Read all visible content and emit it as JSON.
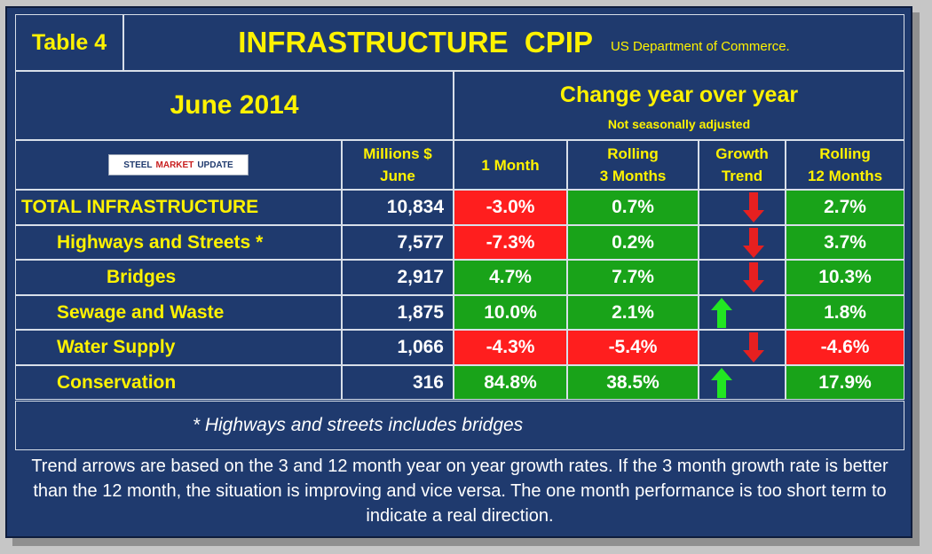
{
  "header": {
    "table_label": "Table 4",
    "title": "INFRASTRUCTURE  CPIP",
    "source": "US Department of Commerce."
  },
  "period": "June 2014",
  "change_title": "Change year over year",
  "change_subtitle": "Not seasonally adjusted",
  "logo": {
    "word1": "STEEL",
    "word2": "MARKET",
    "word3": "UPDATE"
  },
  "columns": {
    "millions_line1": "Millions $",
    "millions_line2": "June",
    "one_month": "1 Month",
    "rolling3_line1": "Rolling",
    "rolling3_line2": "3 Months",
    "trend_line1": "Growth",
    "trend_line2": "Trend",
    "rolling12_line1": "Rolling",
    "rolling12_line2": "12 Months"
  },
  "rows": [
    {
      "label": "TOTAL INFRASTRUCTURE",
      "millions": "10,834",
      "one_month": "-3.0%",
      "one_month_color": "red",
      "rolling3": "0.7%",
      "rolling3_color": "green",
      "trend": "down",
      "rolling12": "2.7%",
      "rolling12_color": "green"
    },
    {
      "label": "Highways and Streets *",
      "millions": "7,577",
      "one_month": "-7.3%",
      "one_month_color": "red",
      "rolling3": "0.2%",
      "rolling3_color": "green",
      "trend": "down",
      "rolling12": "3.7%",
      "rolling12_color": "green"
    },
    {
      "label": "Bridges",
      "millions": "2,917",
      "one_month": "4.7%",
      "one_month_color": "green",
      "rolling3": "7.7%",
      "rolling3_color": "green",
      "trend": "down",
      "rolling12": "10.3%",
      "rolling12_color": "green"
    },
    {
      "label": "Sewage and Waste",
      "millions": "1,875",
      "one_month": "10.0%",
      "one_month_color": "green",
      "rolling3": "2.1%",
      "rolling3_color": "green",
      "trend": "up",
      "rolling12": "1.8%",
      "rolling12_color": "green"
    },
    {
      "label": "Water Supply",
      "millions": "1,066",
      "one_month": "-4.3%",
      "one_month_color": "red",
      "rolling3": "-5.4%",
      "rolling3_color": "red",
      "trend": "down",
      "rolling12": "-4.6%",
      "rolling12_color": "red"
    },
    {
      "label": "Conservation",
      "millions": "316",
      "one_month": "84.8%",
      "one_month_color": "green",
      "rolling3": "38.5%",
      "rolling3_color": "green",
      "trend": "up",
      "rolling12": "17.9%",
      "rolling12_color": "green"
    }
  ],
  "footnote": "* Highways and streets includes bridges",
  "explanation": "Trend arrows are based on the 3 and 12 month year on year growth rates. If the 3 month growth rate is better than the 12 month, the situation is improving and vice versa. The one month performance is too short term to indicate a real direction.",
  "colors": {
    "background": "#1f3a6e",
    "label_text": "#fff200",
    "negative": "#ff1e1e",
    "positive": "#19a319",
    "arrow_up": "#22e622",
    "arrow_down": "#e62020"
  }
}
